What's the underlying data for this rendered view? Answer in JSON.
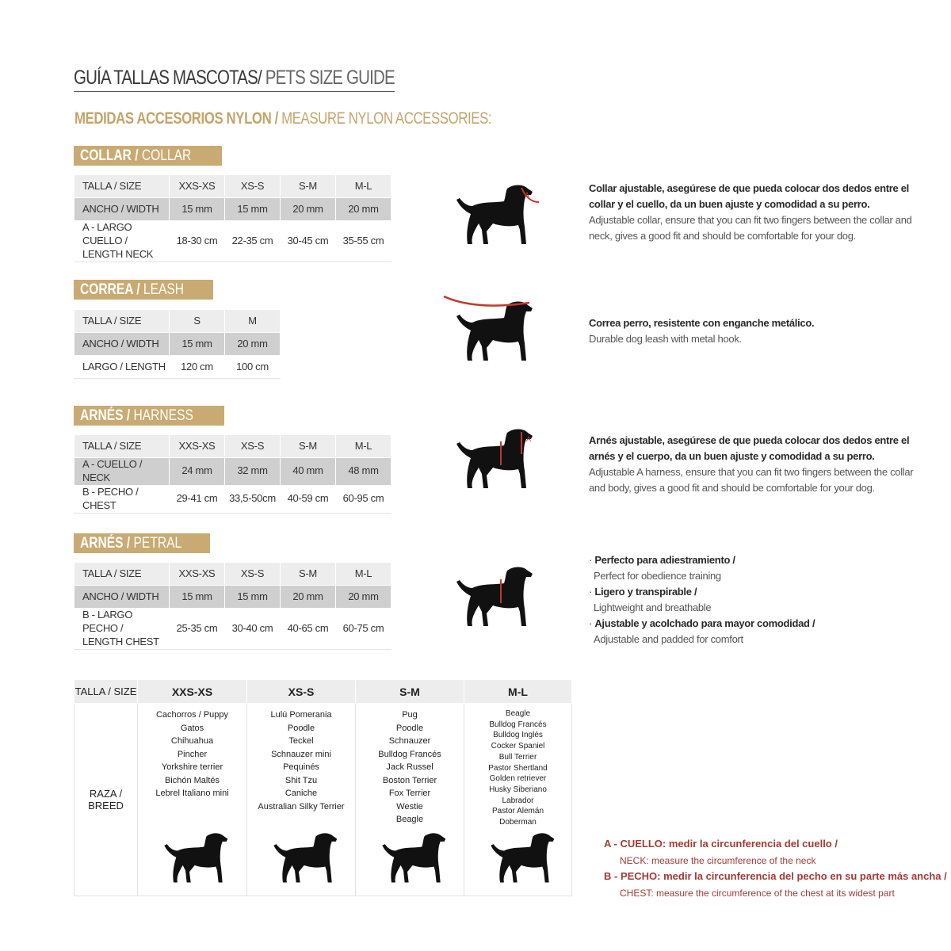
{
  "title": {
    "main": "GUÍA TALLAS MASCOTAS/",
    "sub": " PETS SIZE GUIDE"
  },
  "subtitle": {
    "main": "MEDIDAS ACCESORIOS NYLON /",
    "sub": " MEASURE NYLON ACCESSORIES:"
  },
  "colors": {
    "gold": "#c9aa72",
    "red": "#a23a34",
    "header_gray": "#ededed",
    "row_gray": "#cfcfcf"
  },
  "sections": [
    {
      "badge_es": "COLLAR /",
      "badge_en": " COLLAR",
      "rows": [
        [
          "TALLA / SIZE",
          "XXS-XS",
          "XS-S",
          "S-M",
          "M-L"
        ],
        [
          "ANCHO / WIDTH",
          "15 mm",
          "15 mm",
          "20 mm",
          "20 mm"
        ],
        [
          "A - LARGO CUELLO / LENGTH NECK",
          "18-30 cm",
          "22-35 cm",
          "30-45 cm",
          "35-55 cm"
        ]
      ],
      "desc_es": "Collar ajustable, asegúrese de que pueda colocar dos dedos entre el collar y el cuello, da un buen ajuste y comodidad a su perro.",
      "desc_en": "Adjustable collar, ensure that you can fit two fingers between the collar and neck, gives a good fit and should be comfortable for your dog.",
      "icon": "dog-collar-icon"
    },
    {
      "badge_es": "CORREA /",
      "badge_en": " LEASH",
      "rows": [
        [
          "TALLA / SIZE",
          "S",
          "M"
        ],
        [
          "ANCHO / WIDTH",
          "15 mm",
          "20 mm"
        ],
        [
          "LARGO / LENGTH",
          "120 cm",
          "100 cm"
        ]
      ],
      "desc_es": "Correa perro, resistente con enganche metálico.",
      "desc_en": "Durable dog leash with metal hook.",
      "icon": "dog-leash-icon"
    },
    {
      "badge_es": "ARNÉS /",
      "badge_en": " HARNESS",
      "rows": [
        [
          "TALLA / SIZE",
          "XXS-XS",
          "XS-S",
          "S-M",
          "M-L"
        ],
        [
          "A - CUELLO / NECK",
          "24 mm",
          "32 mm",
          "40 mm",
          "48 mm"
        ],
        [
          "B - PECHO / CHEST",
          "29-41 cm",
          "33,5-50cm",
          "40-59 cm",
          "60-95 cm"
        ]
      ],
      "desc_es": "Arnés ajustable, asegúrese de que pueda colocar dos dedos entre el arnés y el cuerpo, da un buen ajuste y comodidad a su perro.",
      "desc_en": "Adjustable A harness, ensure that you can fit two fingers between the collar and body, gives a good fit and should be comfortable for your dog.",
      "icon": "dog-harness-icon"
    },
    {
      "badge_es": "ARNÉS /",
      "badge_en": " PETRAL",
      "rows": [
        [
          "TALLA / SIZE",
          "XXS-XS",
          "XS-S",
          "S-M",
          "M-L"
        ],
        [
          "ANCHO / WIDTH",
          "15 mm",
          "15 mm",
          "20 mm",
          "20 mm"
        ],
        [
          "B - LARGO PECHO / LENGTH CHEST",
          "25-35 cm",
          "30-40 cm",
          "40-65 cm",
          "60-75 cm"
        ]
      ],
      "bullets": [
        {
          "es": "Perfecto para adiestramiento /",
          "en": "Perfect for obedience training"
        },
        {
          "es": "Ligero y transpirable /",
          "en": "Lightweight and breathable"
        },
        {
          "es": "Ajustable y acolchado para mayor comodidad /",
          "en": "Adjustable and padded for comfort"
        }
      ],
      "icon": "dog-petral-icon"
    }
  ],
  "breed_table": {
    "size_label": "TALLA /  SIZE",
    "breed_label": "RAZA / BREED",
    "columns": [
      {
        "size": "XXS-XS",
        "breeds": [
          "Cachorros / Puppy",
          "Gatos",
          "Chihuahua",
          "Pincher",
          "Yorkshire terrier",
          "Bichón Maltés",
          "Lebrel Italiano mini"
        ],
        "icon": "cat-and-chihuahua-icon"
      },
      {
        "size": "XS-S",
        "breeds": [
          "Lulú Pomerania",
          "Poodle",
          "Teckel",
          "Schnauzer mini",
          "Pequinés",
          "Shit Tzu",
          "Caniche",
          "Australian Silky Terrier"
        ],
        "icon": "dachshund-icon"
      },
      {
        "size": "S-M",
        "breeds": [
          "Pug",
          "Poodle",
          "Schnauzer",
          "Bulldog Francés",
          "Jack Russel",
          "Boston Terrier",
          "Fox Terrier",
          "Westie",
          "Beagle"
        ],
        "icon": "schnauzer-icon"
      },
      {
        "size": "M-L",
        "breeds": [
          "Beagle",
          "Bulldog Francés",
          "Bulldog Inglés",
          "Cocker Spaniel",
          "Bull Terrier",
          "Pastor Shertland",
          "Golden retriever",
          "Husky Siberiano",
          "Labrador",
          "Pastor Alemán",
          "Doberman"
        ],
        "icon": "doberman-icon"
      }
    ]
  },
  "legend": {
    "a_es": "A - CUELLO: medir la circunferencia del cuello /",
    "a_en": "NECK: measure the circumference of the neck",
    "b_es": "B - PECHO: medir la circunferencia del pecho en su parte más ancha /",
    "b_en": "CHEST: measure the circumference of the chest at its widest part"
  }
}
